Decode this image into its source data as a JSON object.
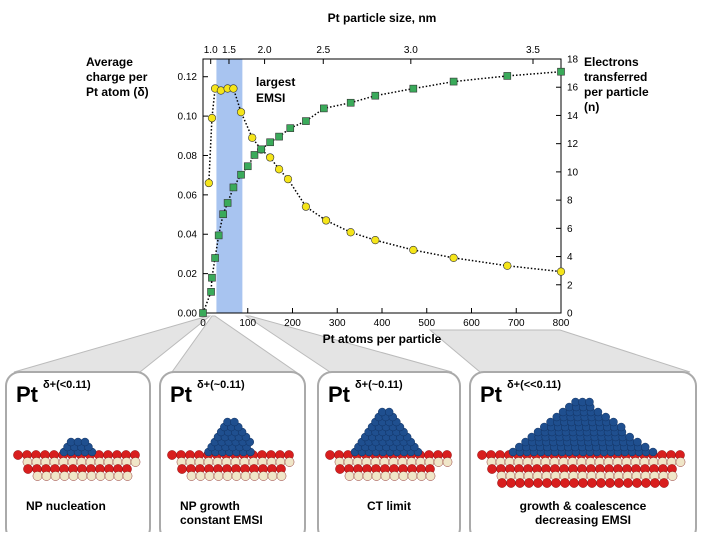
{
  "chart_data": {
    "type": "line",
    "x_label": "Pt atoms per particle",
    "x2_label": "Pt particle size, nm",
    "y_label": [
      "Average",
      "charge per",
      "Pt atom (δ)"
    ],
    "y2_label": [
      "Electrons",
      "transferred",
      "per particle",
      "(n)"
    ],
    "annotation": [
      "largest",
      "EMSI"
    ],
    "highlight_band": [
      30,
      88
    ],
    "band_color": "#a8c4f0",
    "xlim": [
      0,
      800
    ],
    "xticks": [
      0,
      100,
      200,
      300,
      400,
      500,
      600,
      700,
      800
    ],
    "ylim": [
      0,
      0.129
    ],
    "yticks": [
      {
        "value": 0,
        "label": "0.00"
      },
      {
        "value": 0.02,
        "label": "0.02"
      },
      {
        "value": 0.04,
        "label": "0.04"
      },
      {
        "value": 0.06,
        "label": "0.06"
      },
      {
        "value": 0.08,
        "label": "0.08"
      },
      {
        "value": 0.1,
        "label": "0.10"
      },
      {
        "value": 0.12,
        "label": "0.12"
      }
    ],
    "y2lim": [
      0,
      18
    ],
    "y2ticks": [
      0,
      2,
      4,
      6,
      8,
      10,
      12,
      14,
      16,
      18
    ],
    "x2ticks": [
      {
        "value": 1,
        "label": "1.0"
      },
      1.5,
      {
        "value": 2,
        "label": "2.0"
      },
      2.5,
      {
        "value": 3,
        "label": "3.0"
      },
      3.5
    ],
    "series": [
      {
        "color": "#f5e51a",
        "marker": "circle",
        "x": [
          13,
          20,
          27,
          40,
          55,
          68,
          85,
          110,
          130,
          150,
          170,
          190,
          230,
          275,
          330,
          385,
          470,
          560,
          680,
          800
        ],
        "values": [
          0.066,
          0.099,
          0.114,
          0.113,
          0.114,
          0.114,
          0.102,
          0.089,
          0.083,
          0.079,
          0.073,
          0.068,
          0.054,
          0.047,
          0.041,
          0.037,
          0.032,
          0.028,
          0.024,
          0.021
        ]
      },
      {
        "color": "#3aaa5a",
        "marker": "square",
        "axis": "y2",
        "x": [
          0,
          18,
          20,
          27,
          35,
          45,
          55,
          68,
          85,
          100,
          115,
          130,
          150,
          170,
          195,
          230,
          270,
          330,
          385,
          470,
          560,
          680,
          800
        ],
        "values": [
          0,
          1.5,
          2.5,
          3.9,
          5.5,
          7.0,
          7.8,
          8.9,
          9.8,
          10.4,
          11.2,
          11.6,
          12.1,
          12.5,
          13.1,
          13.6,
          14.5,
          14.9,
          15.4,
          15.9,
          16.4,
          16.8,
          17.1
        ]
      }
    ]
  },
  "panels": [
    {
      "element": "Pt",
      "charge": "δ+(<0.11)",
      "caption": [
        "NP nucleation"
      ]
    },
    {
      "element": "Pt",
      "charge": "δ+(~0.11)",
      "caption": [
        "NP growth",
        "constant EMSI"
      ]
    },
    {
      "element": "Pt",
      "charge": "δ+(~0.11)",
      "caption": [
        "CT limit"
      ]
    },
    {
      "element": "Pt",
      "charge": "δ+(<<0.11)",
      "caption": [
        "growth & coalescence",
        "decreasing EMSI"
      ]
    }
  ]
}
